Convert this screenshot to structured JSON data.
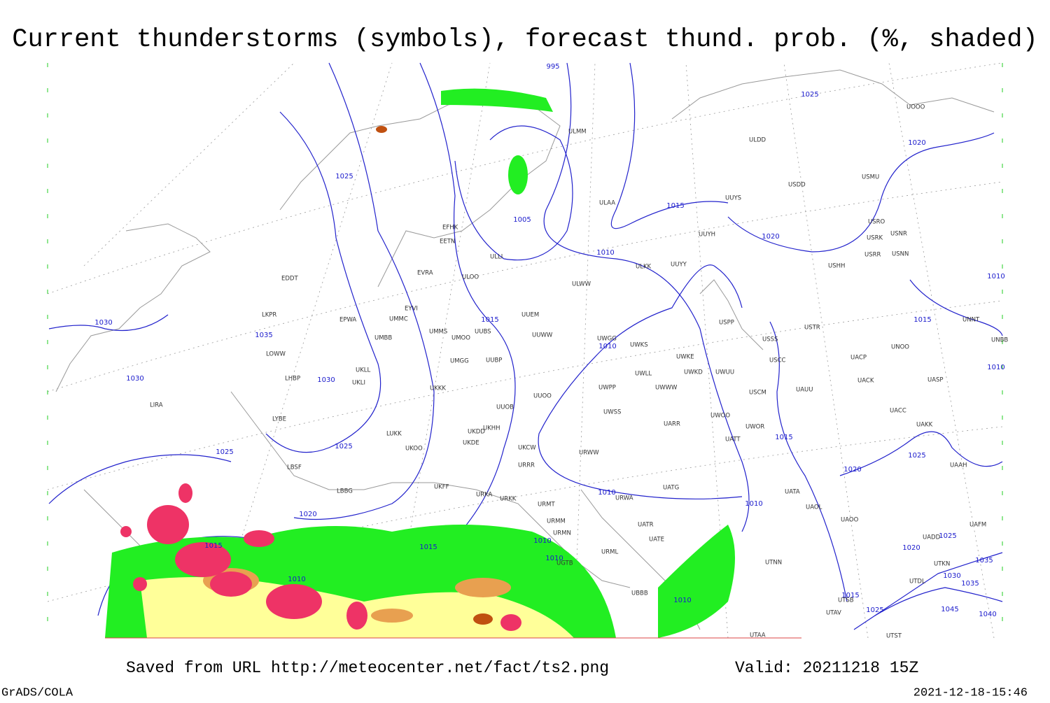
{
  "header": {
    "title": "Current thunderstorms (symbols), forecast thund. prob. (%, shaded)"
  },
  "map": {
    "isobar_labels": [
      995,
      1025,
      1020,
      1025,
      1005,
      1015,
      1020,
      1010,
      1030,
      1035,
      1015,
      1010,
      1030,
      1030,
      1025,
      1025,
      1015,
      1025,
      1020,
      1020,
      1010,
      1010,
      1015,
      1015,
      1010,
      1010,
      1010,
      1010,
      1015,
      1010,
      1015,
      1025,
      1020,
      1025,
      1035,
      1030,
      1035,
      1045,
      1040,
      1010
    ],
    "stations": [
      "EFHK",
      "EETN",
      "ULLI",
      "ULOO",
      "EVRA",
      "EYVI",
      "UMMS",
      "UMOO",
      "UUBS",
      "UMMC",
      "UMBB",
      "EPWA",
      "EDDT",
      "LKPR",
      "LOWW",
      "LHBP",
      "LIRA",
      "LYBE",
      "LBSF",
      "LBBG",
      "UKLL",
      "UKLI",
      "UKKK",
      "UMGG",
      "UUBP",
      "UUEM",
      "UUWW",
      "UUOO",
      "UUOB",
      "UKHH",
      "UKDD",
      "UKDE",
      "UKCW",
      "URRR",
      "UKFF",
      "URKA",
      "URKK",
      "URMT",
      "URMM",
      "URMN",
      "URML",
      "UGTB",
      "UBBB",
      "LUKK",
      "UKOO",
      "ULAA",
      "ULWW",
      "ULKK",
      "UUYY",
      "UUYH",
      "UUYS",
      "UWGG",
      "UWKS",
      "UWKE",
      "UWKD",
      "UWUU",
      "UWLL",
      "UWWW",
      "UWPP",
      "UWSS",
      "UWOO",
      "UWOR",
      "UATT",
      "UARR",
      "URWW",
      "UATG",
      "URWA",
      "UATR",
      "UATE",
      "UATA",
      "UAOL",
      "UAOO",
      "USSS",
      "USCC",
      "USCM",
      "UAUU",
      "UACK",
      "UACP",
      "UNOO",
      "UASP",
      "UACC",
      "UAKK",
      "UAAH",
      "UNNT",
      "UNBB",
      "USTR",
      "USPP",
      "USHH",
      "USRR",
      "USNN",
      "USRK",
      "USNR",
      "USRO",
      "USMU",
      "USDD",
      "ULDD",
      "ULMM",
      "UOOO",
      "UTNN",
      "UTSB",
      "UTAV",
      "UTAA",
      "UTST",
      "UAFM",
      "UADD",
      "UTKN",
      "UTDL"
    ]
  },
  "footer": {
    "source": "Saved from URL http://meteocenter.net/fact/ts2.png",
    "valid": "Valid: 20211218 15Z",
    "software": "GrADS/COLA",
    "timestamp": "2021-12-18-15:46"
  }
}
